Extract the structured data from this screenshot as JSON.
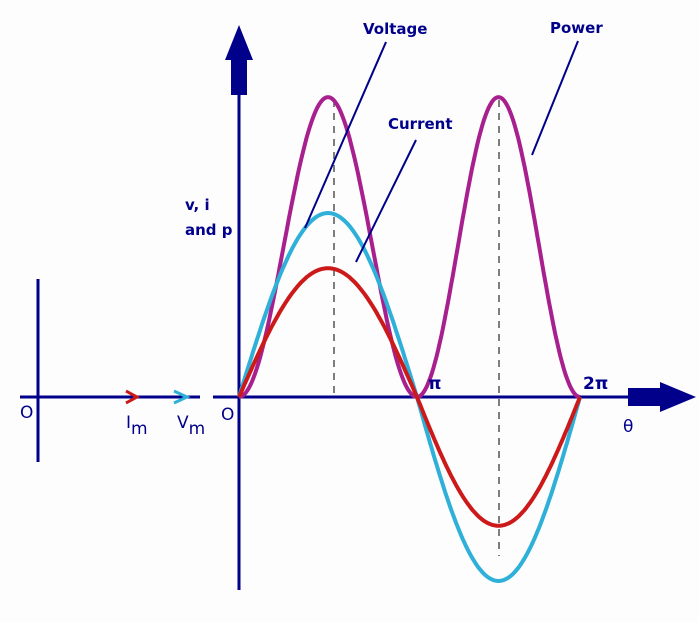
{
  "labels": {
    "voltage": "Voltage",
    "current": "Current",
    "power": "Power",
    "y_axis_line1": "v, i",
    "y_axis_line2": "and p",
    "x_axis": "θ",
    "origin": "O",
    "phasor_origin": "O",
    "pi": "π",
    "two_pi": "2π",
    "im_base": "I",
    "im_sub": "m",
    "vm_base": "V",
    "vm_sub": "m"
  },
  "colors": {
    "axis": "#00008b",
    "voltage": "#2eb0d8",
    "current": "#cc1a1a",
    "power": "#a8208e"
  },
  "chart_data": {
    "type": "line",
    "x_ticks": [
      "O",
      "π",
      "2π"
    ],
    "x_range_radians": [
      0,
      6.2832
    ],
    "series": [
      {
        "name": "Voltage",
        "function": "Vm·sin θ",
        "relative_amplitude": 1.0
      },
      {
        "name": "Current",
        "function": "Im·sin θ",
        "relative_amplitude": 0.7
      },
      {
        "name": "Power",
        "function": "v·i",
        "relative_peak": 1.63
      }
    ]
  }
}
